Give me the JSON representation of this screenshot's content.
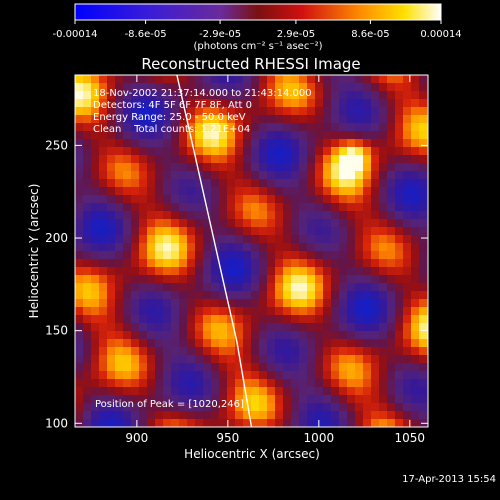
{
  "colorbar": {
    "tick_labels": [
      "-0.00014",
      "-8.6e-05",
      "-2.9e-05",
      "2.9e-05",
      "8.6e-05",
      "0.00014"
    ],
    "tick_values": [
      -0.00014,
      -8.6e-05,
      -2.9e-05,
      2.9e-05,
      8.6e-05,
      0.00014
    ],
    "range": [
      -0.00014,
      0.00014
    ],
    "units": "(photons cm⁻² s⁻¹ asec⁻²)"
  },
  "chart_data": {
    "type": "heatmap",
    "title": "Reconstructed RHESSI Image",
    "xlabel": "Heliocentric X (arcsec)",
    "ylabel": "Heliocentric Y (arcsec)",
    "xlim": [
      866,
      1060
    ],
    "ylim": [
      98,
      288
    ],
    "x_ticks": [
      900,
      950,
      1000,
      1050
    ],
    "y_ticks": [
      100,
      150,
      200,
      250
    ],
    "colormap": "RHESSI blue-purple-red-yellow-white",
    "limb_curve": [
      [
        922,
        288
      ],
      [
        933,
        240
      ],
      [
        944,
        192
      ],
      [
        955,
        144
      ],
      [
        963,
        98
      ]
    ],
    "peak_marker": [
      1020,
      246
    ],
    "annotations": [
      "18-Nov-2002 21:37:14.000 to 21:43:14.000",
      "Detectors: 4F 5F 6F 7F 8F, Att 0",
      "Energy Range: 25.0 - 50.0 keV",
      "Clean    Total counts: 1.21E+04"
    ],
    "peak_text": "Position of Peak = [1020,246]"
  },
  "footer": {
    "date": "17-Apr-2013 15:54"
  }
}
